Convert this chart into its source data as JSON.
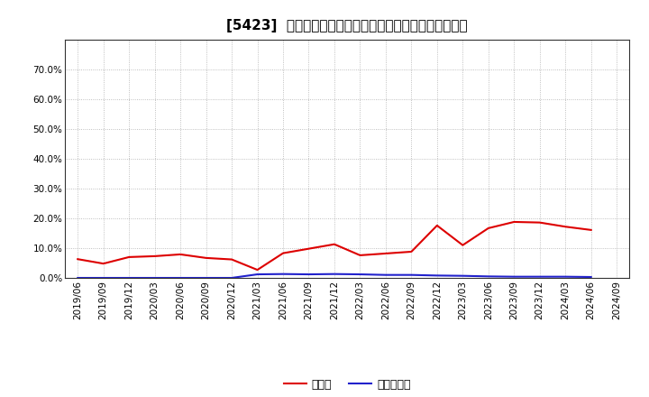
{
  "title": "[5423]  現預金、有利子負債の総資産に対する比率の推移",
  "x_labels": [
    "2019/06",
    "2019/09",
    "2019/12",
    "2020/03",
    "2020/06",
    "2020/09",
    "2020/12",
    "2021/03",
    "2021/06",
    "2021/09",
    "2021/12",
    "2022/03",
    "2022/06",
    "2022/09",
    "2022/12",
    "2023/03",
    "2023/06",
    "2023/09",
    "2023/12",
    "2024/03",
    "2024/06",
    "2024/09"
  ],
  "cash_values": [
    0.063,
    0.048,
    0.07,
    0.073,
    0.079,
    0.067,
    0.062,
    0.027,
    0.083,
    0.098,
    0.113,
    0.076,
    0.082,
    0.088,
    0.176,
    0.11,
    0.167,
    0.188,
    0.186,
    0.172,
    0.161,
    null
  ],
  "debt_values": [
    0.0,
    0.0,
    0.0,
    0.0,
    0.0,
    0.0,
    0.0,
    0.012,
    0.013,
    0.012,
    0.013,
    0.012,
    0.01,
    0.01,
    0.008,
    0.007,
    0.005,
    0.004,
    0.004,
    0.004,
    0.003,
    null
  ],
  "cash_color": "#dd0000",
  "debt_color": "#2222cc",
  "ylim": [
    0.0,
    0.8
  ],
  "yticks": [
    0.0,
    0.1,
    0.2,
    0.3,
    0.4,
    0.5,
    0.6,
    0.7
  ],
  "legend_cash": "現預金",
  "legend_debt": "有利子負債",
  "bg_color": "#ffffff",
  "plot_bg_color": "#ffffff",
  "grid_color": "#999999",
  "title_fontsize": 11,
  "axis_fontsize": 7.5,
  "legend_fontsize": 9
}
